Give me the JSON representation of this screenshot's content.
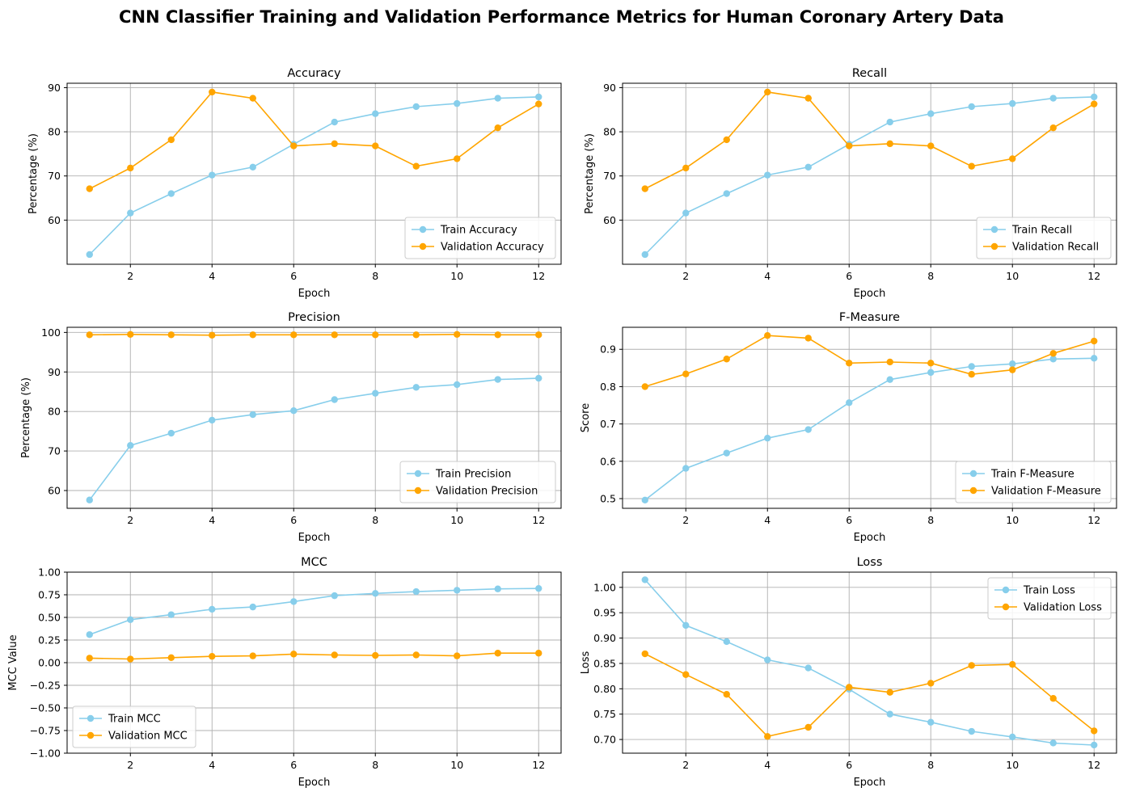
{
  "figure": {
    "title": "CNN Classifier Training and Validation Performance Metrics for Human Coronary Artery Data",
    "colors": {
      "train": "#87ceeb",
      "validation": "#ffa500"
    }
  },
  "chart_data": [
    {
      "type": "line",
      "title": "Accuracy",
      "xlabel": "Epoch",
      "ylabel": "Percentage (%)",
      "x": [
        1,
        2,
        3,
        4,
        5,
        6,
        7,
        8,
        9,
        10,
        11,
        12
      ],
      "xticks": [
        2,
        4,
        6,
        8,
        10,
        12
      ],
      "xlim": [
        0.45,
        12.55
      ],
      "ylim": [
        50,
        91
      ],
      "yticks": [
        60,
        70,
        80,
        90
      ],
      "ytick_labels": [
        "60",
        "70",
        "80",
        "90"
      ],
      "grid": true,
      "legend": "lower right",
      "series": [
        {
          "name": "Train Accuracy",
          "color": "#87ceeb",
          "values": [
            52.2,
            61.6,
            66.0,
            70.2,
            72.0,
            77.2,
            82.2,
            84.1,
            85.7,
            86.4,
            87.6,
            87.9
          ]
        },
        {
          "name": "Validation Accuracy",
          "color": "#ffa500",
          "values": [
            67.1,
            71.8,
            78.2,
            89.0,
            87.6,
            76.8,
            77.3,
            76.8,
            72.2,
            73.9,
            80.9,
            86.3
          ]
        }
      ]
    },
    {
      "type": "line",
      "title": "Recall",
      "xlabel": "Epoch",
      "ylabel": "Percentage (%)",
      "x": [
        1,
        2,
        3,
        4,
        5,
        6,
        7,
        8,
        9,
        10,
        11,
        12
      ],
      "xticks": [
        2,
        4,
        6,
        8,
        10,
        12
      ],
      "xlim": [
        0.45,
        12.55
      ],
      "ylim": [
        50,
        91
      ],
      "yticks": [
        60,
        70,
        80,
        90
      ],
      "ytick_labels": [
        "60",
        "70",
        "80",
        "90"
      ],
      "grid": true,
      "legend": "lower right",
      "series": [
        {
          "name": "Train Recall",
          "color": "#87ceeb",
          "values": [
            52.2,
            61.6,
            66.0,
            70.2,
            72.0,
            77.2,
            82.2,
            84.1,
            85.7,
            86.4,
            87.6,
            87.9
          ]
        },
        {
          "name": "Validation Recall",
          "color": "#ffa500",
          "values": [
            67.1,
            71.8,
            78.2,
            89.0,
            87.6,
            76.8,
            77.3,
            76.8,
            72.2,
            73.9,
            80.9,
            86.3
          ]
        }
      ]
    },
    {
      "type": "line",
      "title": "Precision",
      "xlabel": "Epoch",
      "ylabel": "Percentage (%)",
      "x": [
        1,
        2,
        3,
        4,
        5,
        6,
        7,
        8,
        9,
        10,
        11,
        12
      ],
      "xticks": [
        2,
        4,
        6,
        8,
        10,
        12
      ],
      "xlim": [
        0.45,
        12.55
      ],
      "ylim": [
        55.5,
        101.3
      ],
      "yticks": [
        60,
        70,
        80,
        90,
        100
      ],
      "ytick_labels": [
        "60",
        "70",
        "80",
        "90",
        "100"
      ],
      "grid": true,
      "legend": "lower right",
      "series": [
        {
          "name": "Train Precision",
          "color": "#87ceeb",
          "values": [
            57.6,
            71.4,
            74.5,
            77.8,
            79.2,
            80.2,
            83.0,
            84.6,
            86.1,
            86.8,
            88.1,
            88.4
          ]
        },
        {
          "name": "Validation Precision",
          "color": "#ffa500",
          "values": [
            99.4,
            99.5,
            99.4,
            99.3,
            99.4,
            99.4,
            99.4,
            99.4,
            99.4,
            99.5,
            99.4,
            99.4
          ]
        }
      ]
    },
    {
      "type": "line",
      "title": "F-Measure",
      "xlabel": "Epoch",
      "ylabel": "Score",
      "x": [
        1,
        2,
        3,
        4,
        5,
        6,
        7,
        8,
        9,
        10,
        11,
        12
      ],
      "xticks": [
        2,
        4,
        6,
        8,
        10,
        12
      ],
      "xlim": [
        0.45,
        12.55
      ],
      "ylim": [
        0.474,
        0.959
      ],
      "yticks": [
        0.5,
        0.6,
        0.7,
        0.8,
        0.9
      ],
      "ytick_labels": [
        "0.5",
        "0.6",
        "0.7",
        "0.8",
        "0.9"
      ],
      "grid": true,
      "legend": "lower right",
      "series": [
        {
          "name": "Train F-Measure",
          "color": "#87ceeb",
          "values": [
            0.496,
            0.581,
            0.622,
            0.662,
            0.685,
            0.757,
            0.819,
            0.838,
            0.854,
            0.861,
            0.874,
            0.876
          ]
        },
        {
          "name": "Validation F-Measure",
          "color": "#ffa500",
          "values": [
            0.8,
            0.834,
            0.874,
            0.937,
            0.93,
            0.863,
            0.866,
            0.863,
            0.833,
            0.845,
            0.889,
            0.922
          ]
        }
      ]
    },
    {
      "type": "line",
      "title": "MCC",
      "xlabel": "Epoch",
      "ylabel": "MCC Value",
      "x": [
        1,
        2,
        3,
        4,
        5,
        6,
        7,
        8,
        9,
        10,
        11,
        12
      ],
      "xticks": [
        2,
        4,
        6,
        8,
        10,
        12
      ],
      "xlim": [
        0.45,
        12.55
      ],
      "ylim": [
        -1.0,
        1.0
      ],
      "yticks": [
        -1.0,
        -0.75,
        -0.5,
        -0.25,
        0.0,
        0.25,
        0.5,
        0.75,
        1.0
      ],
      "ytick_labels": [
        "−1.00",
        "−0.75",
        "−0.50",
        "−0.25",
        "0.00",
        "0.25",
        "0.50",
        "0.75",
        "1.00"
      ],
      "grid": true,
      "legend": "lower left",
      "series": [
        {
          "name": "Train MCC",
          "color": "#87ceeb",
          "values": [
            0.31,
            0.475,
            0.53,
            0.59,
            0.615,
            0.675,
            0.74,
            0.765,
            0.785,
            0.8,
            0.815,
            0.82
          ]
        },
        {
          "name": "Validation MCC",
          "color": "#ffa500",
          "values": [
            0.05,
            0.04,
            0.055,
            0.07,
            0.075,
            0.095,
            0.085,
            0.08,
            0.085,
            0.075,
            0.105,
            0.105
          ]
        }
      ]
    },
    {
      "type": "line",
      "title": "Loss",
      "xlabel": "Epoch",
      "ylabel": "Loss",
      "x": [
        1,
        2,
        3,
        4,
        5,
        6,
        7,
        8,
        9,
        10,
        11,
        12
      ],
      "xticks": [
        2,
        4,
        6,
        8,
        10,
        12
      ],
      "xlim": [
        0.45,
        12.55
      ],
      "ylim": [
        0.673,
        1.03
      ],
      "yticks": [
        0.7,
        0.75,
        0.8,
        0.85,
        0.9,
        0.95,
        1.0
      ],
      "ytick_labels": [
        "0.70",
        "0.75",
        "0.80",
        "0.85",
        "0.90",
        "0.95",
        "1.00"
      ],
      "grid": true,
      "legend": "upper right",
      "series": [
        {
          "name": "Train Loss",
          "color": "#87ceeb",
          "values": [
            1.015,
            0.925,
            0.893,
            0.857,
            0.841,
            0.799,
            0.75,
            0.734,
            0.716,
            0.705,
            0.693,
            0.689
          ]
        },
        {
          "name": "Validation Loss",
          "color": "#ffa500",
          "values": [
            0.869,
            0.828,
            0.789,
            0.706,
            0.724,
            0.803,
            0.793,
            0.811,
            0.846,
            0.848,
            0.781,
            0.717
          ]
        }
      ]
    }
  ]
}
